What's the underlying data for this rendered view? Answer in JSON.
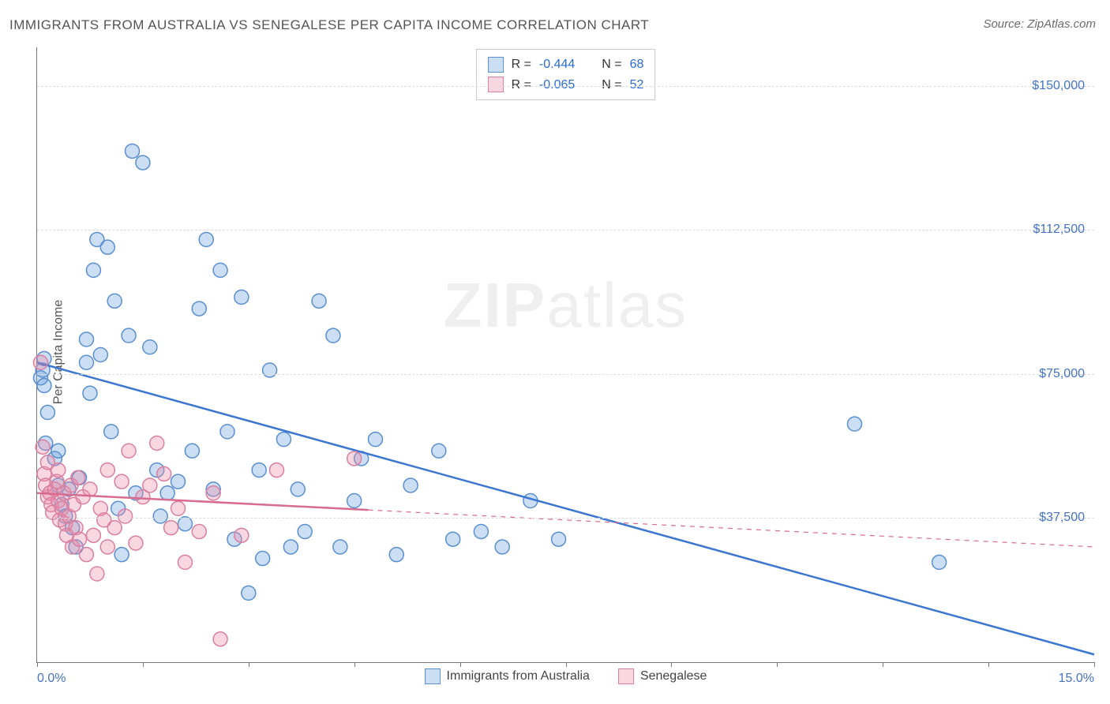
{
  "title": "IMMIGRANTS FROM AUSTRALIA VS SENEGALESE PER CAPITA INCOME CORRELATION CHART",
  "source": "Source: ZipAtlas.com",
  "watermark": {
    "bold": "ZIP",
    "light": "atlas"
  },
  "chart": {
    "type": "scatter",
    "xlim": [
      0,
      15
    ],
    "ylim": [
      0,
      160000
    ],
    "x_ticks": [
      0,
      1.5,
      3.0,
      4.5,
      6.0,
      7.5,
      9.0,
      10.5,
      12.0,
      13.5,
      15.0
    ],
    "x_tick_labels_shown": {
      "first": "0.0%",
      "last": "15.0%"
    },
    "y_gridlines": [
      37500,
      75000,
      112500,
      150000
    ],
    "y_tick_labels": [
      "$37,500",
      "$75,000",
      "$112,500",
      "$150,000"
    ],
    "ylabel": "Per Capita Income",
    "background_color": "#ffffff",
    "grid_color": "#dcdcdc",
    "axis_color": "#777777",
    "tick_label_color": "#4472c4",
    "point_radius": 9,
    "point_stroke_width": 1.5,
    "trend_line_width": 2.5
  },
  "series": [
    {
      "key": "australia",
      "label": "Immigrants from Australia",
      "fill": "rgba(106,160,220,0.35)",
      "stroke": "#5a8fcf",
      "line_color": "#3b76d1",
      "R": "-0.444",
      "N": "68",
      "trend": {
        "x1": 0,
        "y1": 78000,
        "x2": 15,
        "y2": 2000,
        "dashed_after_x": null
      },
      "points": [
        [
          0.05,
          74000
        ],
        [
          0.08,
          76000
        ],
        [
          0.1,
          72000
        ],
        [
          0.1,
          79000
        ],
        [
          0.12,
          57000
        ],
        [
          0.15,
          65000
        ],
        [
          0.25,
          53000
        ],
        [
          0.3,
          55000
        ],
        [
          0.3,
          46000
        ],
        [
          0.35,
          41000
        ],
        [
          0.4,
          38000
        ],
        [
          0.45,
          45000
        ],
        [
          0.5,
          35000
        ],
        [
          0.55,
          30000
        ],
        [
          0.6,
          48000
        ],
        [
          0.7,
          84000
        ],
        [
          0.7,
          78000
        ],
        [
          0.75,
          70000
        ],
        [
          0.8,
          102000
        ],
        [
          0.85,
          110000
        ],
        [
          0.9,
          80000
        ],
        [
          1.0,
          108000
        ],
        [
          1.05,
          60000
        ],
        [
          1.1,
          94000
        ],
        [
          1.15,
          40000
        ],
        [
          1.2,
          28000
        ],
        [
          1.3,
          85000
        ],
        [
          1.35,
          133000
        ],
        [
          1.4,
          44000
        ],
        [
          1.5,
          130000
        ],
        [
          1.6,
          82000
        ],
        [
          1.7,
          50000
        ],
        [
          1.75,
          38000
        ],
        [
          1.85,
          44000
        ],
        [
          2.0,
          47000
        ],
        [
          2.1,
          36000
        ],
        [
          2.2,
          55000
        ],
        [
          2.3,
          92000
        ],
        [
          2.4,
          110000
        ],
        [
          2.5,
          45000
        ],
        [
          2.6,
          102000
        ],
        [
          2.7,
          60000
        ],
        [
          2.8,
          32000
        ],
        [
          2.9,
          95000
        ],
        [
          3.0,
          18000
        ],
        [
          3.15,
          50000
        ],
        [
          3.2,
          27000
        ],
        [
          3.3,
          76000
        ],
        [
          3.5,
          58000
        ],
        [
          3.6,
          30000
        ],
        [
          3.7,
          45000
        ],
        [
          3.8,
          34000
        ],
        [
          4.0,
          94000
        ],
        [
          4.2,
          85000
        ],
        [
          4.3,
          30000
        ],
        [
          4.5,
          42000
        ],
        [
          4.6,
          53000
        ],
        [
          4.8,
          58000
        ],
        [
          5.1,
          28000
        ],
        [
          5.3,
          46000
        ],
        [
          5.7,
          55000
        ],
        [
          5.9,
          32000
        ],
        [
          6.3,
          34000
        ],
        [
          6.6,
          30000
        ],
        [
          7.0,
          42000
        ],
        [
          7.4,
          32000
        ],
        [
          11.6,
          62000
        ],
        [
          12.8,
          26000
        ]
      ]
    },
    {
      "key": "senegalese",
      "label": "Senegalese",
      "fill": "rgba(235,140,170,0.35)",
      "stroke": "#d97fa0",
      "line_color": "#d86b90",
      "R": "-0.065",
      "N": "52",
      "trend": {
        "x1": 0,
        "y1": 44000,
        "x2": 15,
        "y2": 30000,
        "dashed_after_x": 4.7
      },
      "points": [
        [
          0.05,
          78000
        ],
        [
          0.08,
          56000
        ],
        [
          0.1,
          49000
        ],
        [
          0.12,
          46000
        ],
        [
          0.15,
          43000
        ],
        [
          0.15,
          52000
        ],
        [
          0.18,
          44000
        ],
        [
          0.2,
          41000
        ],
        [
          0.22,
          39000
        ],
        [
          0.25,
          45000
        ],
        [
          0.28,
          47000
        ],
        [
          0.3,
          42000
        ],
        [
          0.3,
          50000
        ],
        [
          0.32,
          37000
        ],
        [
          0.35,
          40000
        ],
        [
          0.38,
          44000
        ],
        [
          0.4,
          36000
        ],
        [
          0.42,
          33000
        ],
        [
          0.45,
          38000
        ],
        [
          0.48,
          46000
        ],
        [
          0.5,
          30000
        ],
        [
          0.52,
          41000
        ],
        [
          0.55,
          35000
        ],
        [
          0.58,
          48000
        ],
        [
          0.6,
          32000
        ],
        [
          0.65,
          43000
        ],
        [
          0.7,
          28000
        ],
        [
          0.75,
          45000
        ],
        [
          0.8,
          33000
        ],
        [
          0.85,
          23000
        ],
        [
          0.9,
          40000
        ],
        [
          0.95,
          37000
        ],
        [
          1.0,
          50000
        ],
        [
          1.0,
          30000
        ],
        [
          1.1,
          35000
        ],
        [
          1.2,
          47000
        ],
        [
          1.25,
          38000
        ],
        [
          1.3,
          55000
        ],
        [
          1.4,
          31000
        ],
        [
          1.5,
          43000
        ],
        [
          1.6,
          46000
        ],
        [
          1.7,
          57000
        ],
        [
          1.8,
          49000
        ],
        [
          1.9,
          35000
        ],
        [
          2.0,
          40000
        ],
        [
          2.1,
          26000
        ],
        [
          2.3,
          34000
        ],
        [
          2.5,
          44000
        ],
        [
          2.6,
          6000
        ],
        [
          2.9,
          33000
        ],
        [
          3.4,
          50000
        ],
        [
          4.5,
          53000
        ]
      ]
    }
  ],
  "legend_bottom": [
    {
      "key": "australia",
      "label": "Immigrants from Australia"
    },
    {
      "key": "senegalese",
      "label": "Senegalese"
    }
  ]
}
